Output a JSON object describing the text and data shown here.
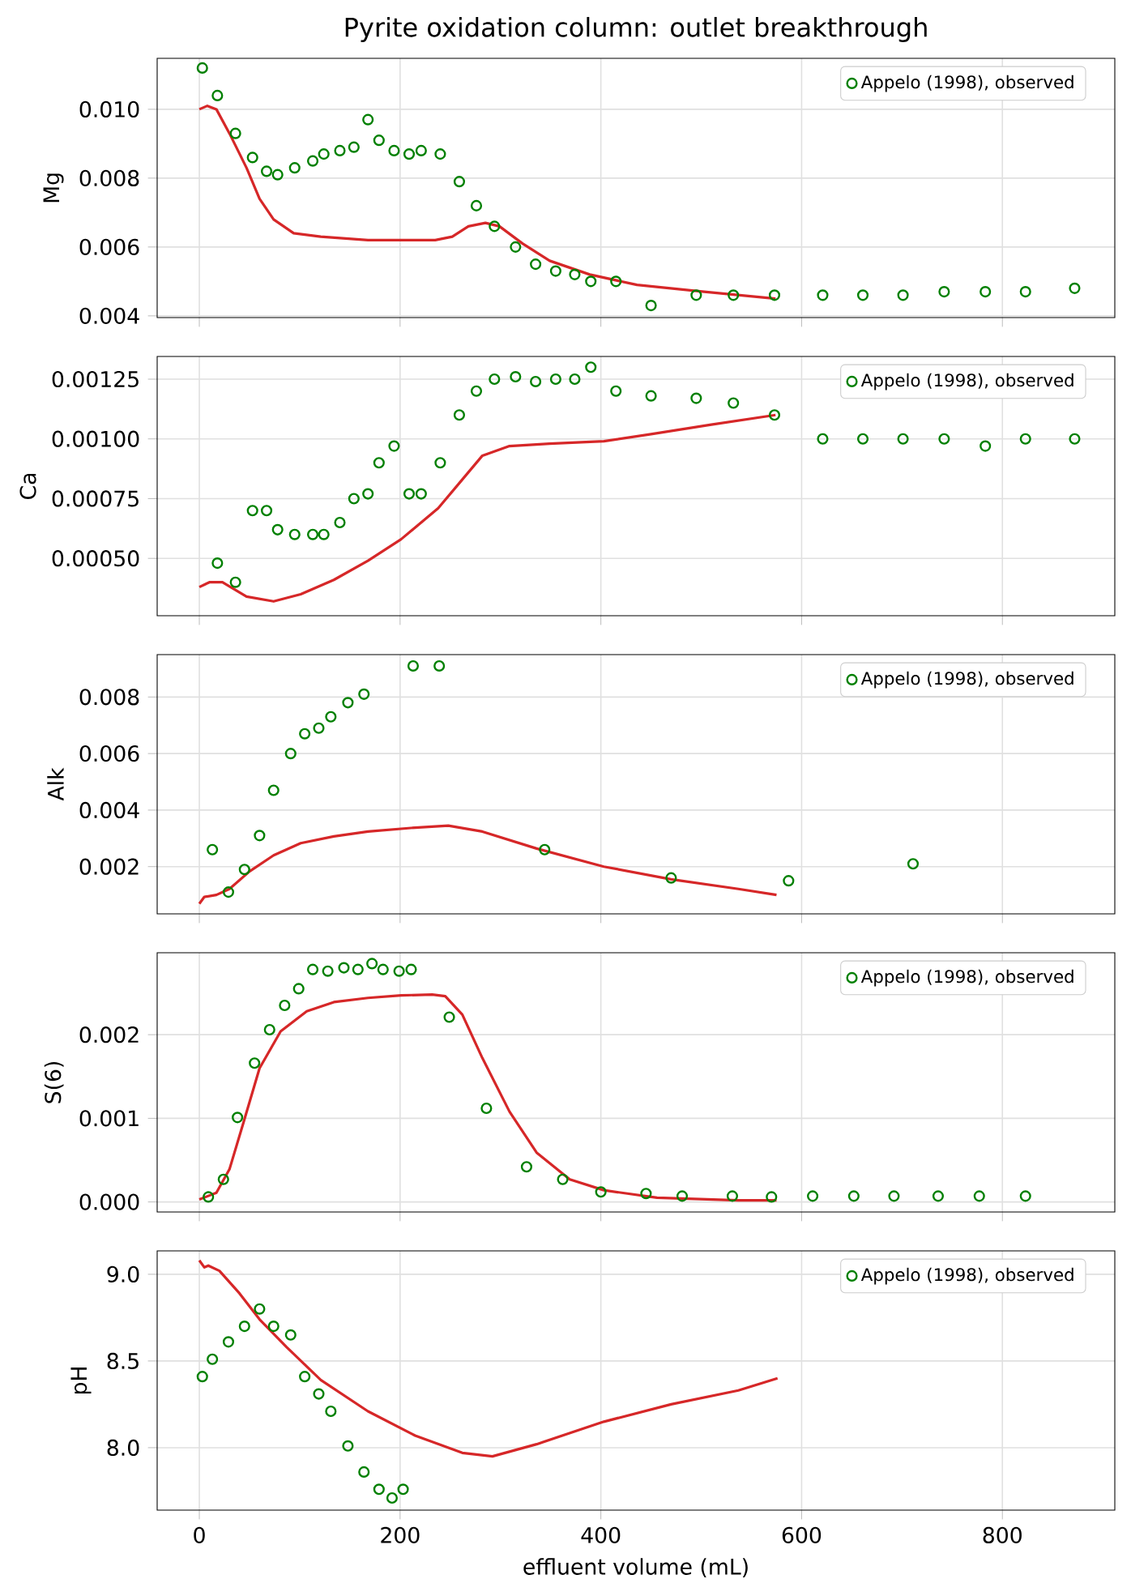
{
  "chart_data": [
    {
      "type": "line",
      "title": "Pyrite oxidation column: outlet breakthrough",
      "ylabel": "Mg",
      "xlim": [
        -42,
        912
      ],
      "xticks": [
        0,
        200,
        400,
        600,
        800
      ],
      "ylim": [
        0.00395,
        0.01148
      ],
      "yticks": [
        0.004,
        0.006,
        0.008,
        {
          "value": 0.01,
          "label": "0.010"
        }
      ],
      "grid": true,
      "legend": "top right",
      "tick_labels": "y",
      "series": [
        {
          "type": "line",
          "color": "#d62728",
          "line_style": "solid",
          "marker": "none",
          "x": [
            0,
            8,
            17,
            30,
            47,
            60,
            74,
            94,
            121,
            168,
            235,
            252,
            268,
            285,
            299,
            322,
            349,
            389,
            436,
            503,
            574
          ],
          "values": [
            0.01,
            0.0101,
            0.01,
            0.0093,
            0.0083,
            0.0074,
            0.0068,
            0.0064,
            0.0063,
            0.0062,
            0.0062,
            0.0063,
            0.0066,
            0.0067,
            0.0066,
            0.0061,
            0.0056,
            0.0052,
            0.0049,
            0.0047,
            0.0045
          ]
        },
        {
          "type": "scatter",
          "name": "Appelo (1998), observed",
          "color": "#008000",
          "marker": "circle",
          "x": [
            3,
            18,
            36,
            53,
            67,
            78,
            95,
            113,
            124,
            140,
            154,
            168,
            179,
            194,
            209,
            221,
            240,
            259,
            276,
            294,
            315,
            335,
            355,
            374,
            390,
            415,
            450,
            495,
            532,
            573,
            621,
            661,
            701,
            742,
            783,
            823,
            872
          ],
          "values": [
            0.0112,
            0.0104,
            0.0093,
            0.0086,
            0.0082,
            0.0081,
            0.0083,
            0.0085,
            0.0087,
            0.0088,
            0.0089,
            0.0097,
            0.0091,
            0.0088,
            0.0087,
            0.0088,
            0.0087,
            0.0079,
            0.0072,
            0.0066,
            0.006,
            0.0055,
            0.0053,
            0.0052,
            0.005,
            0.005,
            0.0043,
            0.0046,
            0.0046,
            0.0046,
            0.0046,
            0.0046,
            0.0046,
            0.0047,
            0.0047,
            0.0047,
            0.0048
          ]
        }
      ]
    },
    {
      "type": "line",
      "ylabel": "Ca",
      "xlim": [
        -42,
        912
      ],
      "xticks": [
        0,
        200,
        400,
        600,
        800
      ],
      "ylim": [
        0.00026,
        0.001345
      ],
      "yticks": [
        {
          "value": 0.0005,
          "label": "0.00050"
        },
        {
          "value": 0.00075,
          "label": "0.00075"
        },
        {
          "value": 0.001,
          "label": "0.00100"
        },
        {
          "value": 0.00125,
          "label": "0.00125"
        }
      ],
      "grid": true,
      "legend": "top right",
      "tick_labels": "y",
      "series": [
        {
          "type": "line",
          "color": "#d62728",
          "line_style": "solid",
          "marker": "none",
          "x": [
            0,
            10,
            23,
            47,
            74,
            101,
            134,
            168,
            201,
            238,
            262,
            282,
            309,
            349,
            403,
            450,
            510,
            574
          ],
          "values": [
            0.00038,
            0.0004,
            0.0004,
            0.00034,
            0.00032,
            0.00035,
            0.00041,
            0.00049,
            0.00058,
            0.00071,
            0.00083,
            0.00093,
            0.00097,
            0.00098,
            0.00099,
            0.00102,
            0.00106,
            0.0011
          ]
        },
        {
          "type": "scatter",
          "name": "Appelo (1998), observed",
          "color": "#008000",
          "marker": "circle",
          "x": [
            18,
            36,
            53,
            67,
            78,
            95,
            113,
            124,
            140,
            154,
            168,
            179,
            194,
            209,
            221,
            240,
            259,
            276,
            294,
            315,
            335,
            355,
            374,
            390,
            415,
            450,
            495,
            532,
            573,
            621,
            661,
            701,
            742,
            783,
            823,
            872
          ],
          "values": [
            0.00048,
            0.0004,
            0.0007,
            0.0007,
            0.00062,
            0.0006,
            0.0006,
            0.0006,
            0.00065,
            0.00075,
            0.00077,
            0.0009,
            0.00097,
            0.00077,
            0.00077,
            0.0009,
            0.0011,
            0.0012,
            0.00125,
            0.00126,
            0.00124,
            0.00125,
            0.00125,
            0.0013,
            0.0012,
            0.00118,
            0.00117,
            0.00115,
            0.0011,
            0.001,
            0.001,
            0.001,
            0.001,
            0.00097,
            0.001,
            0.001
          ]
        }
      ]
    },
    {
      "type": "line",
      "ylabel": "Alk",
      "xlim": [
        -42,
        912
      ],
      "xticks": [
        0,
        200,
        400,
        600,
        800
      ],
      "ylim": [
        0.00033,
        0.0095
      ],
      "yticks": [
        0.002,
        0.004,
        0.006,
        0.008
      ],
      "grid": true,
      "legend": "top right",
      "tick_labels": "y",
      "series": [
        {
          "type": "line",
          "color": "#d62728",
          "line_style": "solid",
          "marker": "none",
          "x": [
            0,
            5,
            17,
            30,
            50,
            74,
            101,
            134,
            168,
            215,
            248,
            282,
            336,
            403,
            470,
            537,
            575
          ],
          "values": [
            0.00069,
            0.00093,
            0.001,
            0.00121,
            0.00183,
            0.0024,
            0.00283,
            0.00307,
            0.00324,
            0.00338,
            0.00345,
            0.00324,
            0.00264,
            0.002,
            0.00155,
            0.00121,
            0.001
          ]
        },
        {
          "type": "scatter",
          "name": "Appelo (1998), observed",
          "color": "#008000",
          "marker": "circle",
          "x": [
            13,
            29,
            45,
            60,
            74,
            91,
            105,
            119,
            131,
            148,
            164,
            213,
            239,
            344,
            470,
            587,
            711
          ],
          "values": [
            0.0026,
            0.0011,
            0.0019,
            0.0031,
            0.0047,
            0.006,
            0.0067,
            0.0069,
            0.0073,
            0.0078,
            0.0081,
            0.0091,
            0.0091,
            0.0026,
            0.0016,
            0.0015,
            0.0021
          ]
        }
      ]
    },
    {
      "type": "line",
      "ylabel": "S(6)",
      "xlim": [
        -42,
        912
      ],
      "xticks": [
        0,
        200,
        400,
        600,
        800
      ],
      "ylim": [
        -0.00012,
        0.00298
      ],
      "yticks": [
        {
          "value": 0,
          "label": "0.000"
        },
        {
          "value": 0.001,
          "label": "0.001"
        },
        {
          "value": 0.002,
          "label": "0.002"
        }
      ],
      "grid": true,
      "legend": "top right",
      "tick_labels": "y",
      "series": [
        {
          "type": "line",
          "color": "#d62728",
          "line_style": "solid",
          "marker": "none",
          "x": [
            0,
            17,
            30,
            44,
            60,
            81,
            107,
            134,
            168,
            201,
            232,
            245,
            262,
            282,
            309,
            336,
            369,
            403,
            456,
            537,
            575
          ],
          "values": [
            3e-05,
            0.00011,
            0.00039,
            0.00095,
            0.0016,
            0.00204,
            0.00228,
            0.00239,
            0.00244,
            0.00247,
            0.00248,
            0.00246,
            0.00224,
            0.00172,
            0.00108,
            0.00059,
            0.00027,
            0.00014,
            5e-05,
            2e-05,
            2e-05
          ]
        },
        {
          "type": "scatter",
          "name": "Appelo (1998), observed",
          "color": "#008000",
          "marker": "circle",
          "x": [
            9,
            24,
            38,
            55,
            70,
            85,
            99,
            113,
            128,
            144,
            158,
            172,
            183,
            199,
            211,
            249,
            286,
            326,
            362,
            400,
            445,
            481,
            531,
            570,
            611,
            652,
            692,
            736,
            777,
            823
          ],
          "values": [
            6e-05,
            0.00027,
            0.00101,
            0.00166,
            0.00206,
            0.00235,
            0.00255,
            0.00278,
            0.00276,
            0.0028,
            0.00278,
            0.00285,
            0.00278,
            0.00276,
            0.00278,
            0.00221,
            0.00112,
            0.00042,
            0.00027,
            0.00012,
            0.0001,
            7e-05,
            7e-05,
            6e-05,
            7e-05,
            7e-05,
            7e-05,
            7e-05,
            7e-05,
            7e-05
          ]
        }
      ]
    },
    {
      "type": "line",
      "ylabel": "pH",
      "xlabel": "effluent volume (mL)",
      "xlim": [
        -42,
        912
      ],
      "xticks": [
        0,
        200,
        400,
        600,
        800
      ],
      "ylim": [
        7.64,
        9.135
      ],
      "yticks": [
        {
          "value": 8,
          "label": "8.0"
        },
        8.5,
        {
          "value": 9,
          "label": "9.0"
        }
      ],
      "grid": true,
      "legend": "top right",
      "series": [
        {
          "type": "line",
          "color": "#d62728",
          "line_style": "solid",
          "marker": "none",
          "x": [
            0,
            5,
            9,
            20,
            40,
            60,
            87,
            121,
            168,
            215,
            262,
            292,
            336,
            403,
            470,
            537,
            576
          ],
          "values": [
            9.08,
            9.04,
            9.05,
            9.02,
            8.89,
            8.74,
            8.58,
            8.39,
            8.21,
            8.07,
            7.97,
            7.95,
            8.02,
            8.15,
            8.25,
            8.33,
            8.4
          ]
        },
        {
          "type": "scatter",
          "name": "Appelo (1998), observed",
          "color": "#008000",
          "marker": "circle",
          "x": [
            3,
            13,
            29,
            45,
            60,
            74,
            91,
            105,
            119,
            131,
            148,
            164,
            179,
            192,
            203
          ],
          "values": [
            8.41,
            8.51,
            8.61,
            8.7,
            8.8,
            8.7,
            8.65,
            8.41,
            8.31,
            8.21,
            8.01,
            7.86,
            7.76,
            7.71,
            7.76
          ]
        }
      ]
    }
  ]
}
